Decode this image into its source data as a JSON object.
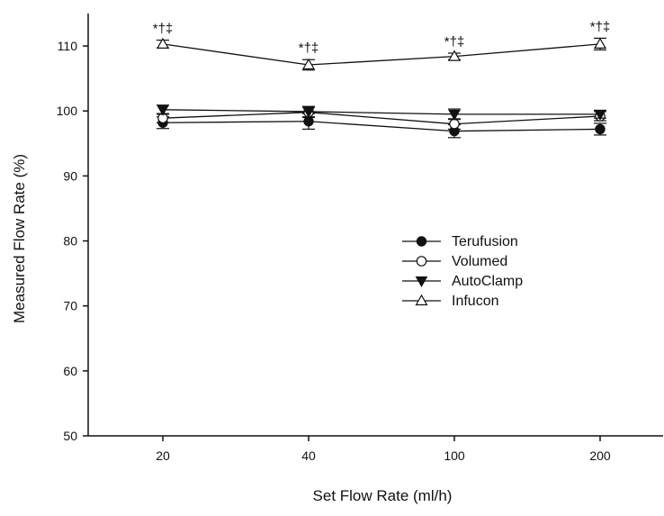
{
  "chart_data": {
    "type": "line",
    "title": "",
    "xlabel": "Set Flow Rate (ml/h)",
    "ylabel": "Measured Flow Rate (%)",
    "categories": [
      "20",
      "40",
      "100",
      "200"
    ],
    "ylim": [
      50,
      115
    ],
    "yticks": [
      "50",
      "60",
      "70",
      "80",
      "90",
      "100",
      "110"
    ],
    "grid": false,
    "legend_position": "center-right",
    "series": [
      {
        "name": "Terufusion",
        "marker": "filled-circle",
        "values": [
          98.2,
          98.4,
          96.9,
          97.2
        ],
        "errors": [
          0.9,
          1.2,
          1.0,
          0.9
        ]
      },
      {
        "name": "Volumed",
        "marker": "open-circle",
        "values": [
          98.9,
          99.8,
          98.0,
          99.2
        ],
        "errors": [
          0.7,
          0.8,
          0.8,
          0.7
        ]
      },
      {
        "name": "AutoClamp",
        "marker": "filled-triangle-down",
        "values": [
          100.2,
          99.9,
          99.5,
          99.5
        ],
        "errors": [
          0.7,
          0.8,
          0.8,
          0.6
        ]
      },
      {
        "name": "Infucon",
        "marker": "open-triangle-up",
        "values": [
          110.3,
          107.1,
          108.4,
          110.3
        ],
        "errors": [
          0.6,
          0.8,
          0.5,
          0.9
        ]
      }
    ],
    "annotations": [
      "*†‡",
      "*†‡",
      "*†‡",
      "*†‡"
    ]
  }
}
